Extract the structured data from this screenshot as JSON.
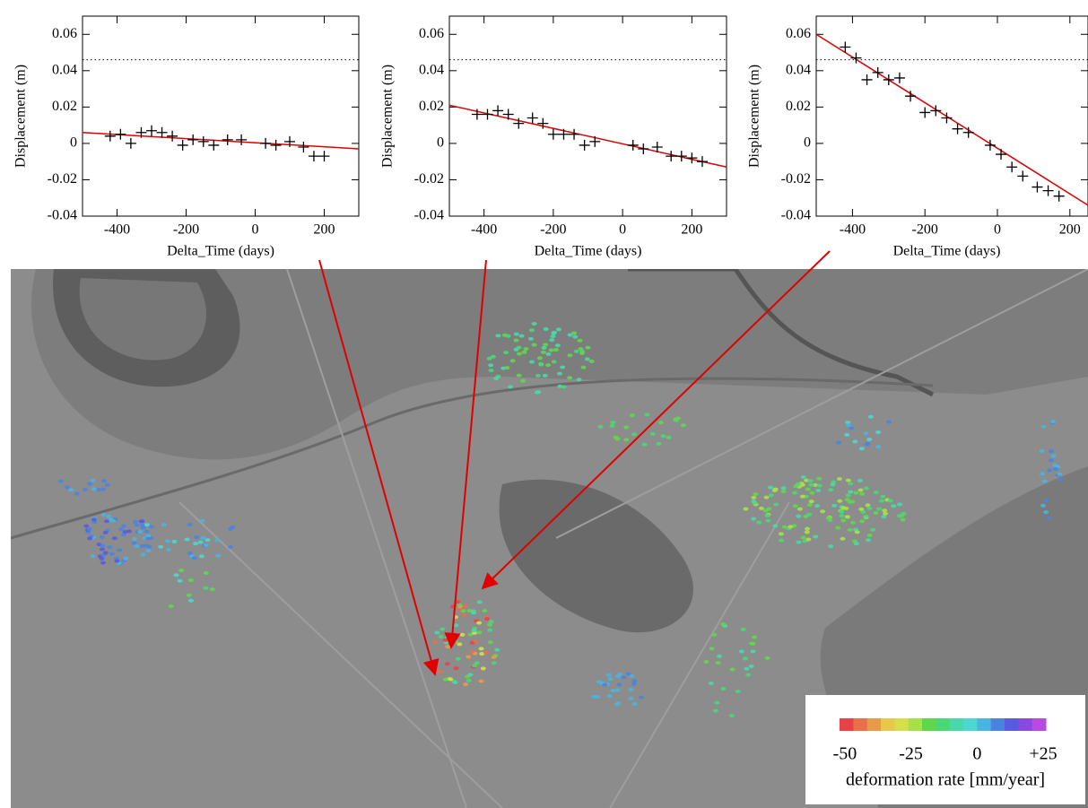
{
  "chart_data": [
    {
      "type": "scatter",
      "xlabel": "Delta_Time (days)",
      "ylabel": "Displacement (m)",
      "xlim": [
        -500,
        300
      ],
      "ylim": [
        -0.04,
        0.07
      ],
      "xticks": [
        -400,
        -200,
        0,
        200
      ],
      "yticks": [
        -0.04,
        -0.02,
        0,
        0.02,
        0.04,
        0.06
      ],
      "reference_y": 0.046,
      "marker_color": "#000000",
      "x": [
        -420,
        -390,
        -360,
        -330,
        -300,
        -270,
        -240,
        -210,
        -180,
        -150,
        -120,
        -80,
        -40,
        30,
        60,
        100,
        140,
        170,
        200
      ],
      "y": [
        0.004,
        0.005,
        0,
        0.006,
        0.007,
        0.006,
        0.004,
        -0.001,
        0.002,
        0.001,
        -0.001,
        0.002,
        0.002,
        0,
        -0.001,
        0.001,
        -0.002,
        -0.007,
        -0.007
      ],
      "fit": {
        "color": "#e00000",
        "x": [
          -500,
          300
        ],
        "y": [
          0.006,
          -0.003
        ]
      }
    },
    {
      "type": "scatter",
      "xlabel": "Delta_Time (days)",
      "ylabel": "Displacement (m)",
      "xlim": [
        -500,
        300
      ],
      "ylim": [
        -0.04,
        0.07
      ],
      "xticks": [
        -400,
        -200,
        0,
        200
      ],
      "yticks": [
        -0.04,
        -0.02,
        0,
        0.02,
        0.04,
        0.06
      ],
      "reference_y": 0.046,
      "marker_color": "#000000",
      "x": [
        -420,
        -390,
        -360,
        -330,
        -300,
        -260,
        -230,
        -200,
        -170,
        -140,
        -110,
        -80,
        30,
        60,
        100,
        140,
        170,
        200,
        230
      ],
      "y": [
        0.016,
        0.016,
        0.018,
        0.016,
        0.011,
        0.014,
        0.011,
        0.005,
        0.005,
        0.005,
        -0.001,
        0.001,
        -0.001,
        -0.003,
        -0.002,
        -0.007,
        -0.007,
        -0.008,
        -0.01
      ],
      "fit": {
        "color": "#e00000",
        "x": [
          -500,
          300
        ],
        "y": [
          0.021,
          -0.013
        ]
      }
    },
    {
      "type": "scatter",
      "xlabel": "Delta_Time (days)",
      "ylabel": "Displacement (m)",
      "xlim": [
        -500,
        250
      ],
      "ylim": [
        -0.04,
        0.07
      ],
      "xticks": [
        -400,
        -200,
        0,
        200
      ],
      "yticks": [
        -0.04,
        -0.02,
        0,
        0.02,
        0.04,
        0.06
      ],
      "reference_y": 0.046,
      "marker_color": "#000000",
      "x": [
        -420,
        -390,
        -360,
        -330,
        -300,
        -270,
        -240,
        -200,
        -170,
        -140,
        -110,
        -80,
        -20,
        10,
        40,
        70,
        110,
        140,
        170
      ],
      "y": [
        0.053,
        0.047,
        0.035,
        0.039,
        0.035,
        0.036,
        0.026,
        0.017,
        0.018,
        0.014,
        0.008,
        0.006,
        -0.001,
        -0.006,
        -0.013,
        -0.018,
        -0.024,
        -0.026,
        -0.029
      ],
      "fit": {
        "color": "#e00000",
        "x": [
          -500,
          250
        ],
        "y": [
          0.06,
          -0.034
        ]
      }
    }
  ],
  "colorbar": {
    "label": "deformation rate [mm/year]",
    "lim": [
      -52,
      26
    ],
    "ticks": [
      -50,
      -25,
      0,
      {
        "value": 25,
        "label": "+25"
      }
    ],
    "colors": [
      "#e8414a",
      "#e8704a",
      "#e89a4a",
      "#e8c84a",
      "#d4e04a",
      "#a8e04a",
      "#5ed84a",
      "#4ad874",
      "#4ad8a8",
      "#4ad8d0",
      "#4ab4e0",
      "#4a84e0",
      "#5a5ae0",
      "#8a4ae0",
      "#b84ae0"
    ]
  }
}
